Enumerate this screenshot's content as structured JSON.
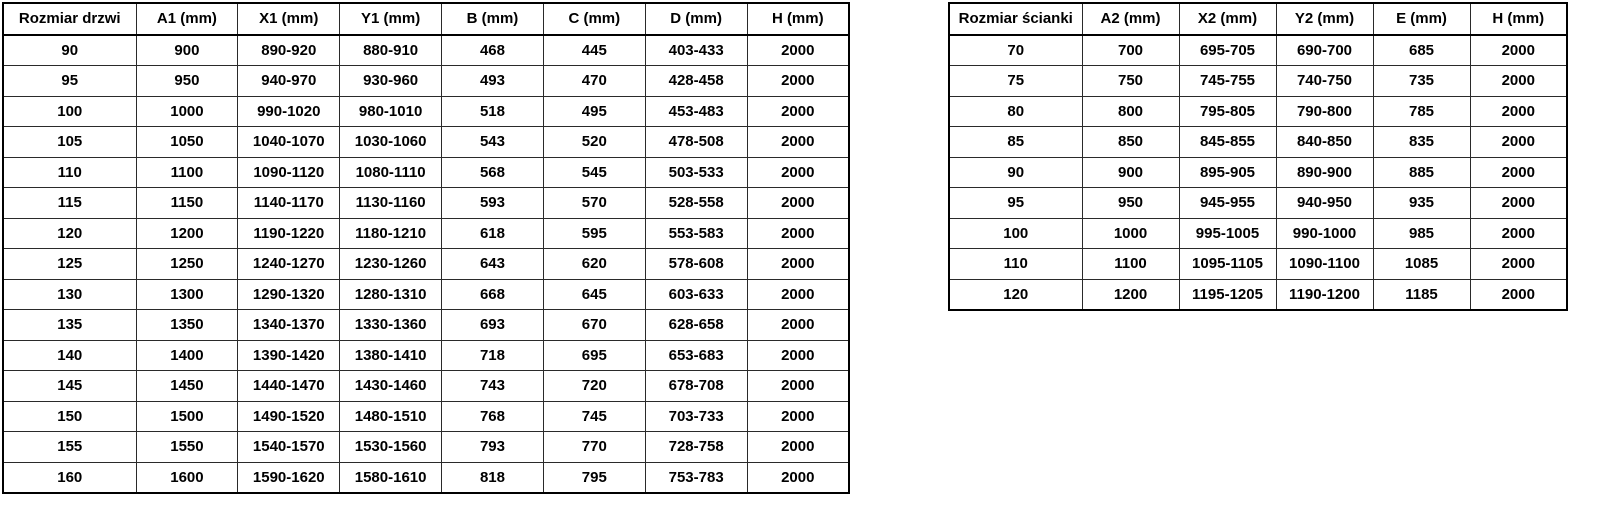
{
  "colors": {
    "background": "#ffffff",
    "grid_line": "#000000",
    "text": "#000000"
  },
  "chart_data": [
    {
      "type": "table",
      "name": "door-dimensions",
      "columns": [
        "Rozmiar drzwi",
        "A1 (mm)",
        "X1 (mm)",
        "Y1 (mm)",
        "B (mm)",
        "C (mm)",
        "D (mm)",
        "H (mm)"
      ],
      "rows": [
        [
          "90",
          "900",
          "890-920",
          "880-910",
          "468",
          "445",
          "403-433",
          "2000"
        ],
        [
          "95",
          "950",
          "940-970",
          "930-960",
          "493",
          "470",
          "428-458",
          "2000"
        ],
        [
          "100",
          "1000",
          "990-1020",
          "980-1010",
          "518",
          "495",
          "453-483",
          "2000"
        ],
        [
          "105",
          "1050",
          "1040-1070",
          "1030-1060",
          "543",
          "520",
          "478-508",
          "2000"
        ],
        [
          "110",
          "1100",
          "1090-1120",
          "1080-1110",
          "568",
          "545",
          "503-533",
          "2000"
        ],
        [
          "115",
          "1150",
          "1140-1170",
          "1130-1160",
          "593",
          "570",
          "528-558",
          "2000"
        ],
        [
          "120",
          "1200",
          "1190-1220",
          "1180-1210",
          "618",
          "595",
          "553-583",
          "2000"
        ],
        [
          "125",
          "1250",
          "1240-1270",
          "1230-1260",
          "643",
          "620",
          "578-608",
          "2000"
        ],
        [
          "130",
          "1300",
          "1290-1320",
          "1280-1310",
          "668",
          "645",
          "603-633",
          "2000"
        ],
        [
          "135",
          "1350",
          "1340-1370",
          "1330-1360",
          "693",
          "670",
          "628-658",
          "2000"
        ],
        [
          "140",
          "1400",
          "1390-1420",
          "1380-1410",
          "718",
          "695",
          "653-683",
          "2000"
        ],
        [
          "145",
          "1450",
          "1440-1470",
          "1430-1460",
          "743",
          "720",
          "678-708",
          "2000"
        ],
        [
          "150",
          "1500",
          "1490-1520",
          "1480-1510",
          "768",
          "745",
          "703-733",
          "2000"
        ],
        [
          "155",
          "1550",
          "1540-1570",
          "1530-1560",
          "793",
          "770",
          "728-758",
          "2000"
        ],
        [
          "160",
          "1600",
          "1590-1620",
          "1580-1610",
          "818",
          "795",
          "753-783",
          "2000"
        ]
      ]
    },
    {
      "type": "table",
      "name": "wall-panel-dimensions",
      "columns": [
        "Rozmiar ścianki",
        "A2 (mm)",
        "X2 (mm)",
        "Y2 (mm)",
        "E (mm)",
        "H (mm)"
      ],
      "rows": [
        [
          "70",
          "700",
          "695-705",
          "690-700",
          "685",
          "2000"
        ],
        [
          "75",
          "750",
          "745-755",
          "740-750",
          "735",
          "2000"
        ],
        [
          "80",
          "800",
          "795-805",
          "790-800",
          "785",
          "2000"
        ],
        [
          "85",
          "850",
          "845-855",
          "840-850",
          "835",
          "2000"
        ],
        [
          "90",
          "900",
          "895-905",
          "890-900",
          "885",
          "2000"
        ],
        [
          "95",
          "950",
          "945-955",
          "940-950",
          "935",
          "2000"
        ],
        [
          "100",
          "1000",
          "995-1005",
          "990-1000",
          "985",
          "2000"
        ],
        [
          "110",
          "1100",
          "1095-1105",
          "1090-1100",
          "1085",
          "2000"
        ],
        [
          "120",
          "1200",
          "1195-1205",
          "1190-1200",
          "1185",
          "2000"
        ]
      ]
    }
  ]
}
